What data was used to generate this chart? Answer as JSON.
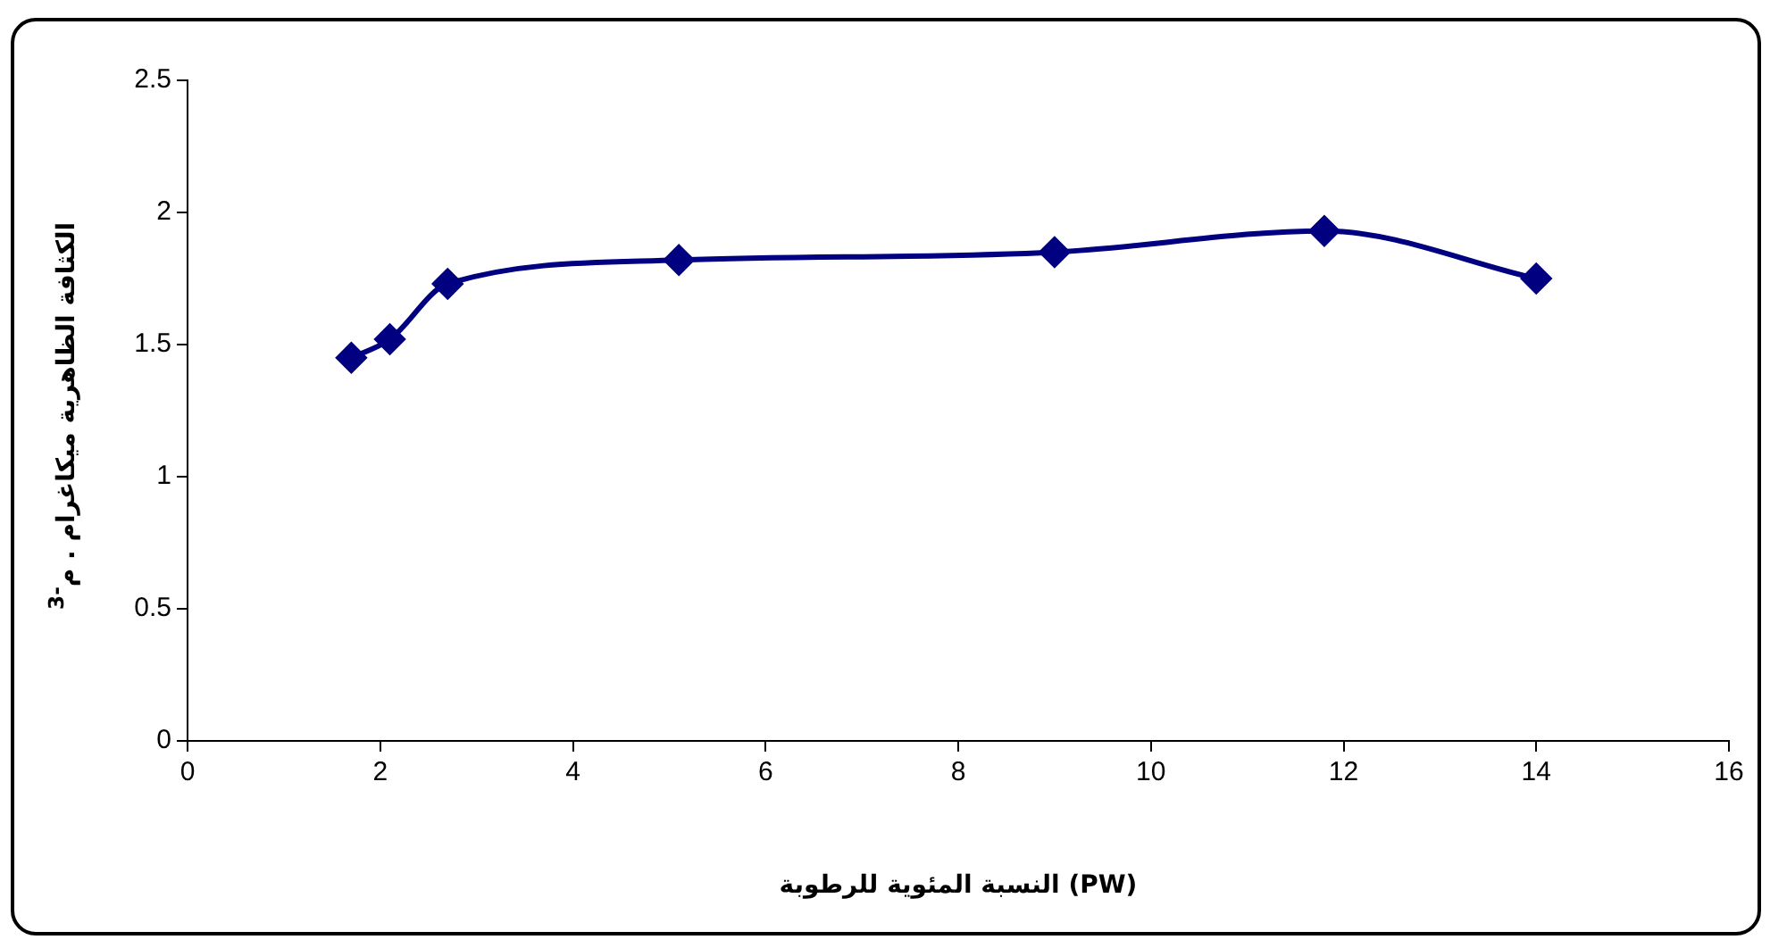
{
  "chart_data": {
    "type": "line",
    "xlabel": "النسبة المئوية للرطوبة (PW)",
    "ylabel": "الكثافة الظاهرية ميكاغرام . م$^{-3}$",
    "x": [
      1.7,
      2.1,
      2.7,
      5.1,
      9.0,
      11.8,
      14.0
    ],
    "series": [
      {
        "color": "#000080",
        "values": [
          1.45,
          1.52,
          1.73,
          1.82,
          1.85,
          1.93,
          1.75
        ]
      }
    ],
    "xlim": [
      0,
      16
    ],
    "xticks": [
      0,
      2,
      4,
      6,
      8,
      10,
      12,
      14,
      16
    ],
    "ylim": [
      0,
      2.5
    ],
    "yticks": [
      0,
      0.5,
      1,
      1.5,
      2,
      2.5
    ],
    "grid": false,
    "legend": false,
    "marker": "diamond",
    "line_style": "solid"
  }
}
